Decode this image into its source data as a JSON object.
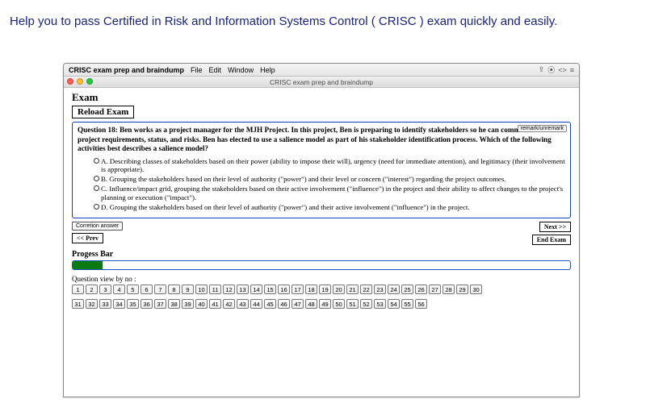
{
  "banner": "Help you to pass Certified in Risk and Information Systems Control ( CRISC ) exam quickly and easily.",
  "menubar": {
    "app_name": "CRISC exam prep and braindump",
    "items": [
      "File",
      "Edit",
      "Window",
      "Help"
    ]
  },
  "titlebar": "CRISC exam prep and braindump",
  "exam_heading": "Exam",
  "reload_label": "Reload Exam",
  "remark_label": "remark/unremark",
  "question": {
    "prompt": "Question 18: Ben works as a project manager for the MJH Project. In this project, Ben is preparing to identify stakeholders so he can communicate project requirements, status, and risks. Ben has elected to use a salience model as part of his stakeholder identification process. Which of the following activities best describes a salience model?",
    "choices": [
      "A. Describing classes of stakeholders based on their power (ability to impose their will), urgency (need for immediate attention), and legitimacy (their involvement is appropriate).",
      "B. Grouping the stakeholders based on their level of authority (\"power\") and their level or concern (\"interest\") regarding the project outcomes.",
      "C. Influence/impact grid, grouping the stakeholders based on their active involvement (\"influence\") in the project and their ability to affect changes to the project's planning or execution (\"impact\").",
      "D. Grouping the stakeholders based on their level of authority (\"power\") and their active involvement (\"influence\") in the project."
    ]
  },
  "correction_label": "Corretion answer",
  "prev_label": "<< Prev",
  "next_label": "Next >>",
  "end_label": "End Exam",
  "progress_label": "Progess Bar",
  "progress_percent": 6,
  "qview_label": "Question view by no :",
  "row1_numbers": [
    "1",
    "2",
    "3",
    "4",
    "5",
    "6",
    "7",
    "8",
    "9",
    "10",
    "11",
    "12",
    "13",
    "14",
    "15",
    "16",
    "17",
    "18",
    "19",
    "20",
    "21",
    "22",
    "23",
    "24",
    "25",
    "26",
    "27",
    "28",
    "29",
    "30"
  ],
  "row2_numbers": [
    "31",
    "32",
    "33",
    "34",
    "35",
    "36",
    "37",
    "38",
    "39",
    "40",
    "41",
    "42",
    "43",
    "44",
    "45",
    "46",
    "47",
    "48",
    "49",
    "50",
    "51",
    "52",
    "53",
    "54",
    "55",
    "56"
  ],
  "colors": {
    "banner_text": "#1a237e",
    "question_border": "#1040c0",
    "progress_border": "#2050c0",
    "progress_fill": "#0a7a12"
  }
}
